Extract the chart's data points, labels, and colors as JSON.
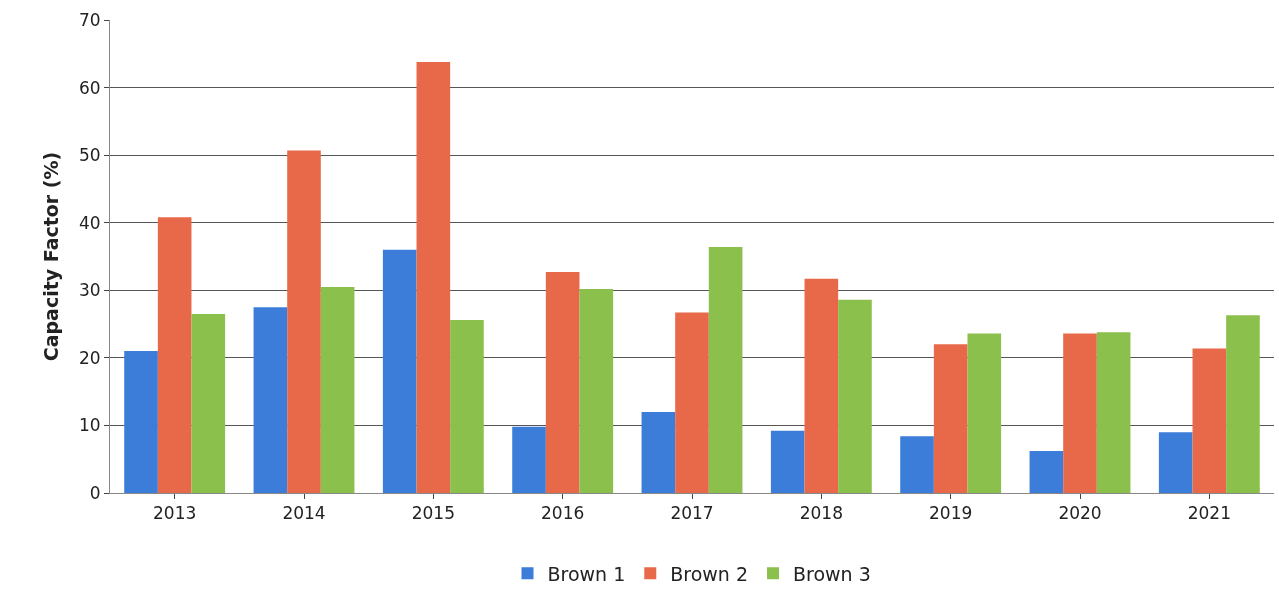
{
  "chart_data": {
    "type": "bar",
    "ylabel": "Capacity Factor (%)",
    "categories": [
      "2013",
      "2014",
      "2015",
      "2016",
      "2017",
      "2018",
      "2019",
      "2020",
      "2021"
    ],
    "series": [
      {
        "name": "Brown 1",
        "color": "#3b7dd8",
        "values": [
          21,
          27.5,
          36,
          9.8,
          12,
          9.2,
          8.4,
          6.2,
          9
        ]
      },
      {
        "name": "Brown 2",
        "color": "#e8694a",
        "values": [
          40.8,
          50.7,
          63.8,
          32.7,
          26.7,
          31.7,
          22,
          23.6,
          21.4
        ]
      },
      {
        "name": "Brown 3",
        "color": "#8cc04c",
        "values": [
          26.5,
          30.5,
          25.6,
          30.2,
          36.4,
          28.6,
          23.6,
          23.8,
          26.3
        ]
      }
    ],
    "ylim": [
      0,
      70
    ],
    "yticks": [
      0,
      10,
      20,
      30,
      40,
      50,
      60,
      70
    ],
    "grid": "y",
    "legend": "bottom"
  }
}
